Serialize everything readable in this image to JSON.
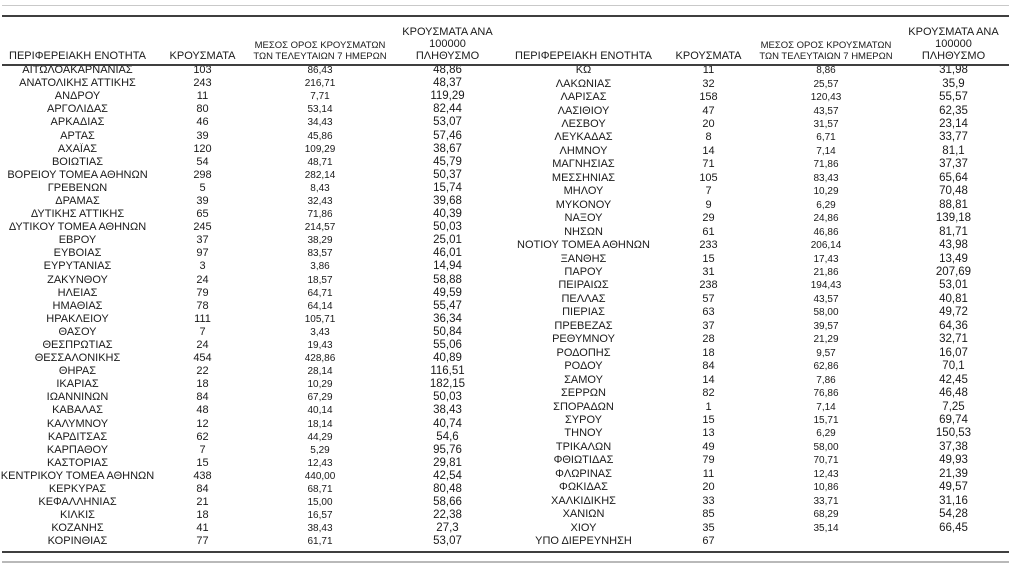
{
  "report": {
    "colors": {
      "background": "#ffffff",
      "text": "#1a1a1a",
      "rule_dark": "#3f3f3f",
      "rule_light": "#c9c9c9"
    },
    "columns": {
      "region": "ΠΕΡΙΦΕΡΕΙΑΚΗ ΕΝΟΤΗΤΑ",
      "cases": "ΚΡΟΥΣΜΑΤΑ",
      "avg7_line1": "ΜΕΣΟΣ ΟΡΟΣ ΚΡΟΥΣΜΑΤΩΝ",
      "avg7_line2": "ΤΩΝ ΤΕΛΕΥΤΑΙΩΝ 7 ΗΜΕΡΩΝ",
      "per100k_line1": "ΚΡΟΥΣΜΑΤΑ ΑΝΑ 100000",
      "per100k_line2": "ΠΛΗΘΥΣΜΟ"
    },
    "tables": [
      {
        "rows": [
          [
            "ΑΙΤΩΛΟΑΚΑΡΝΑΝΙΑΣ",
            "103",
            "86,43",
            "48,86"
          ],
          [
            "ΑΝΑΤΟΛΙΚΗΣ ΑΤΤΙΚΗΣ",
            "243",
            "216,71",
            "48,37"
          ],
          [
            "ΑΝΔΡΟΥ",
            "11",
            "7,71",
            "119,29"
          ],
          [
            "ΑΡΓΟΛΙΔΑΣ",
            "80",
            "53,14",
            "82,44"
          ],
          [
            "ΑΡΚΑΔΙΑΣ",
            "46",
            "34,43",
            "53,07"
          ],
          [
            "ΑΡΤΑΣ",
            "39",
            "45,86",
            "57,46"
          ],
          [
            "ΑΧΑΪΑΣ",
            "120",
            "109,29",
            "38,67"
          ],
          [
            "ΒΟΙΩΤΙΑΣ",
            "54",
            "48,71",
            "45,79"
          ],
          [
            "ΒΟΡΕΙΟΥ ΤΟΜΕΑ ΑΘΗΝΩΝ",
            "298",
            "282,14",
            "50,37"
          ],
          [
            "ΓΡΕΒΕΝΩΝ",
            "5",
            "8,43",
            "15,74"
          ],
          [
            "ΔΡΑΜΑΣ",
            "39",
            "32,43",
            "39,68"
          ],
          [
            "ΔΥΤΙΚΗΣ ΑΤΤΙΚΗΣ",
            "65",
            "71,86",
            "40,39"
          ],
          [
            "ΔΥΤΙΚΟΥ ΤΟΜΕΑ ΑΘΗΝΩΝ",
            "245",
            "214,57",
            "50,03"
          ],
          [
            "ΕΒΡΟΥ",
            "37",
            "38,29",
            "25,01"
          ],
          [
            "ΕΥΒΟΙΑΣ",
            "97",
            "83,57",
            "46,01"
          ],
          [
            "ΕΥΡΥΤΑΝΙΑΣ",
            "3",
            "3,86",
            "14,94"
          ],
          [
            "ΖΑΚΥΝΘΟΥ",
            "24",
            "18,57",
            "58,88"
          ],
          [
            "ΗΛΕΙΑΣ",
            "79",
            "64,71",
            "49,59"
          ],
          [
            "ΗΜΑΘΙΑΣ",
            "78",
            "64,14",
            "55,47"
          ],
          [
            "ΗΡΑΚΛΕΙΟΥ",
            "111",
            "105,71",
            "36,34"
          ],
          [
            "ΘΑΣΟΥ",
            "7",
            "3,43",
            "50,84"
          ],
          [
            "ΘΕΣΠΡΩΤΙΑΣ",
            "24",
            "19,43",
            "55,06"
          ],
          [
            "ΘΕΣΣΑΛΟΝΙΚΗΣ",
            "454",
            "428,86",
            "40,89"
          ],
          [
            "ΘΗΡΑΣ",
            "22",
            "28,14",
            "116,51"
          ],
          [
            "ΙΚΑΡΙΑΣ",
            "18",
            "10,29",
            "182,15"
          ],
          [
            "ΙΩΑΝΝΙΝΩΝ",
            "84",
            "67,29",
            "50,03"
          ],
          [
            "ΚΑΒΑΛΑΣ",
            "48",
            "40,14",
            "38,43"
          ],
          [
            "ΚΑΛΥΜΝΟΥ",
            "12",
            "18,14",
            "40,74"
          ],
          [
            "ΚΑΡΔΙΤΣΑΣ",
            "62",
            "44,29",
            "54,6"
          ],
          [
            "ΚΑΡΠΑΘΟΥ",
            "7",
            "5,29",
            "95,76"
          ],
          [
            "ΚΑΣΤΟΡΙΑΣ",
            "15",
            "12,43",
            "29,81"
          ],
          [
            "ΚΕΝΤΡΙΚΟΥ ΤΟΜΕΑ ΑΘΗΝΩΝ",
            "438",
            "440,00",
            "42,54"
          ],
          [
            "ΚΕΡΚΥΡΑΣ",
            "84",
            "68,71",
            "80,48"
          ],
          [
            "ΚΕΦΑΛΛΗΝΙΑΣ",
            "21",
            "15,00",
            "58,66"
          ],
          [
            "ΚΙΛΚΙΣ",
            "18",
            "16,57",
            "22,38"
          ],
          [
            "ΚΟΖΑΝΗΣ",
            "41",
            "38,43",
            "27,3"
          ],
          [
            "ΚΟΡΙΝΘΙΑΣ",
            "77",
            "61,71",
            "53,07"
          ]
        ]
      },
      {
        "rows": [
          [
            "ΚΩ",
            "11",
            "8,86",
            "31,98"
          ],
          [
            "ΛΑΚΩΝΙΑΣ",
            "32",
            "25,57",
            "35,9"
          ],
          [
            "ΛΑΡΙΣΑΣ",
            "158",
            "120,43",
            "55,57"
          ],
          [
            "ΛΑΣΙΘΙΟΥ",
            "47",
            "43,57",
            "62,35"
          ],
          [
            "ΛΕΣΒΟΥ",
            "20",
            "31,57",
            "23,14"
          ],
          [
            "ΛΕΥΚΑΔΑΣ",
            "8",
            "6,71",
            "33,77"
          ],
          [
            "ΛΗΜΝΟΥ",
            "14",
            "7,14",
            "81,1"
          ],
          [
            "ΜΑΓΝΗΣΙΑΣ",
            "71",
            "71,86",
            "37,37"
          ],
          [
            "ΜΕΣΣΗΝΙΑΣ",
            "105",
            "83,43",
            "65,64"
          ],
          [
            "ΜΗΛΟΥ",
            "7",
            "10,29",
            "70,48"
          ],
          [
            "ΜΥΚΟΝΟΥ",
            "9",
            "6,29",
            "88,81"
          ],
          [
            "ΝΑΞΟΥ",
            "29",
            "24,86",
            "139,18"
          ],
          [
            "ΝΗΣΩΝ",
            "61",
            "46,86",
            "81,71"
          ],
          [
            "ΝΟΤΙΟΥ ΤΟΜΕΑ ΑΘΗΝΩΝ",
            "233",
            "206,14",
            "43,98"
          ],
          [
            "ΞΑΝΘΗΣ",
            "15",
            "17,43",
            "13,49"
          ],
          [
            "ΠΑΡΟΥ",
            "31",
            "21,86",
            "207,69"
          ],
          [
            "ΠΕΙΡΑΙΩΣ",
            "238",
            "194,43",
            "53,01"
          ],
          [
            "ΠΕΛΛΑΣ",
            "57",
            "43,57",
            "40,81"
          ],
          [
            "ΠΙΕΡΙΑΣ",
            "63",
            "58,00",
            "49,72"
          ],
          [
            "ΠΡΕΒΕΖΑΣ",
            "37",
            "39,57",
            "64,36"
          ],
          [
            "ΡΕΘΥΜΝΟΥ",
            "28",
            "21,29",
            "32,71"
          ],
          [
            "ΡΟΔΟΠΗΣ",
            "18",
            "9,57",
            "16,07"
          ],
          [
            "ΡΟΔΟΥ",
            "84",
            "62,86",
            "70,1"
          ],
          [
            "ΣΑΜΟΥ",
            "14",
            "7,86",
            "42,45"
          ],
          [
            "ΣΕΡΡΩΝ",
            "82",
            "76,86",
            "46,48"
          ],
          [
            "ΣΠΟΡΑΔΩΝ",
            "1",
            "7,14",
            "7,25"
          ],
          [
            "ΣΥΡΟΥ",
            "15",
            "15,71",
            "69,74"
          ],
          [
            "ΤΗΝΟΥ",
            "13",
            "6,29",
            "150,53"
          ],
          [
            "ΤΡΙΚΑΛΩΝ",
            "49",
            "58,00",
            "37,38"
          ],
          [
            "ΦΘΙΩΤΙΔΑΣ",
            "79",
            "70,71",
            "49,93"
          ],
          [
            "ΦΛΩΡΙΝΑΣ",
            "11",
            "12,43",
            "21,39"
          ],
          [
            "ΦΩΚΙΔΑΣ",
            "20",
            "10,86",
            "49,57"
          ],
          [
            "ΧΑΛΚΙΔΙΚΗΣ",
            "33",
            "33,71",
            "31,16"
          ],
          [
            "ΧΑΝΙΩΝ",
            "85",
            "68,29",
            "54,28"
          ],
          [
            "ΧΙΟΥ",
            "35",
            "35,14",
            "66,45"
          ],
          [
            "ΥΠΟ ΔΙΕΡΕΥΝΗΣΗ",
            "67",
            "",
            ""
          ]
        ]
      }
    ]
  }
}
